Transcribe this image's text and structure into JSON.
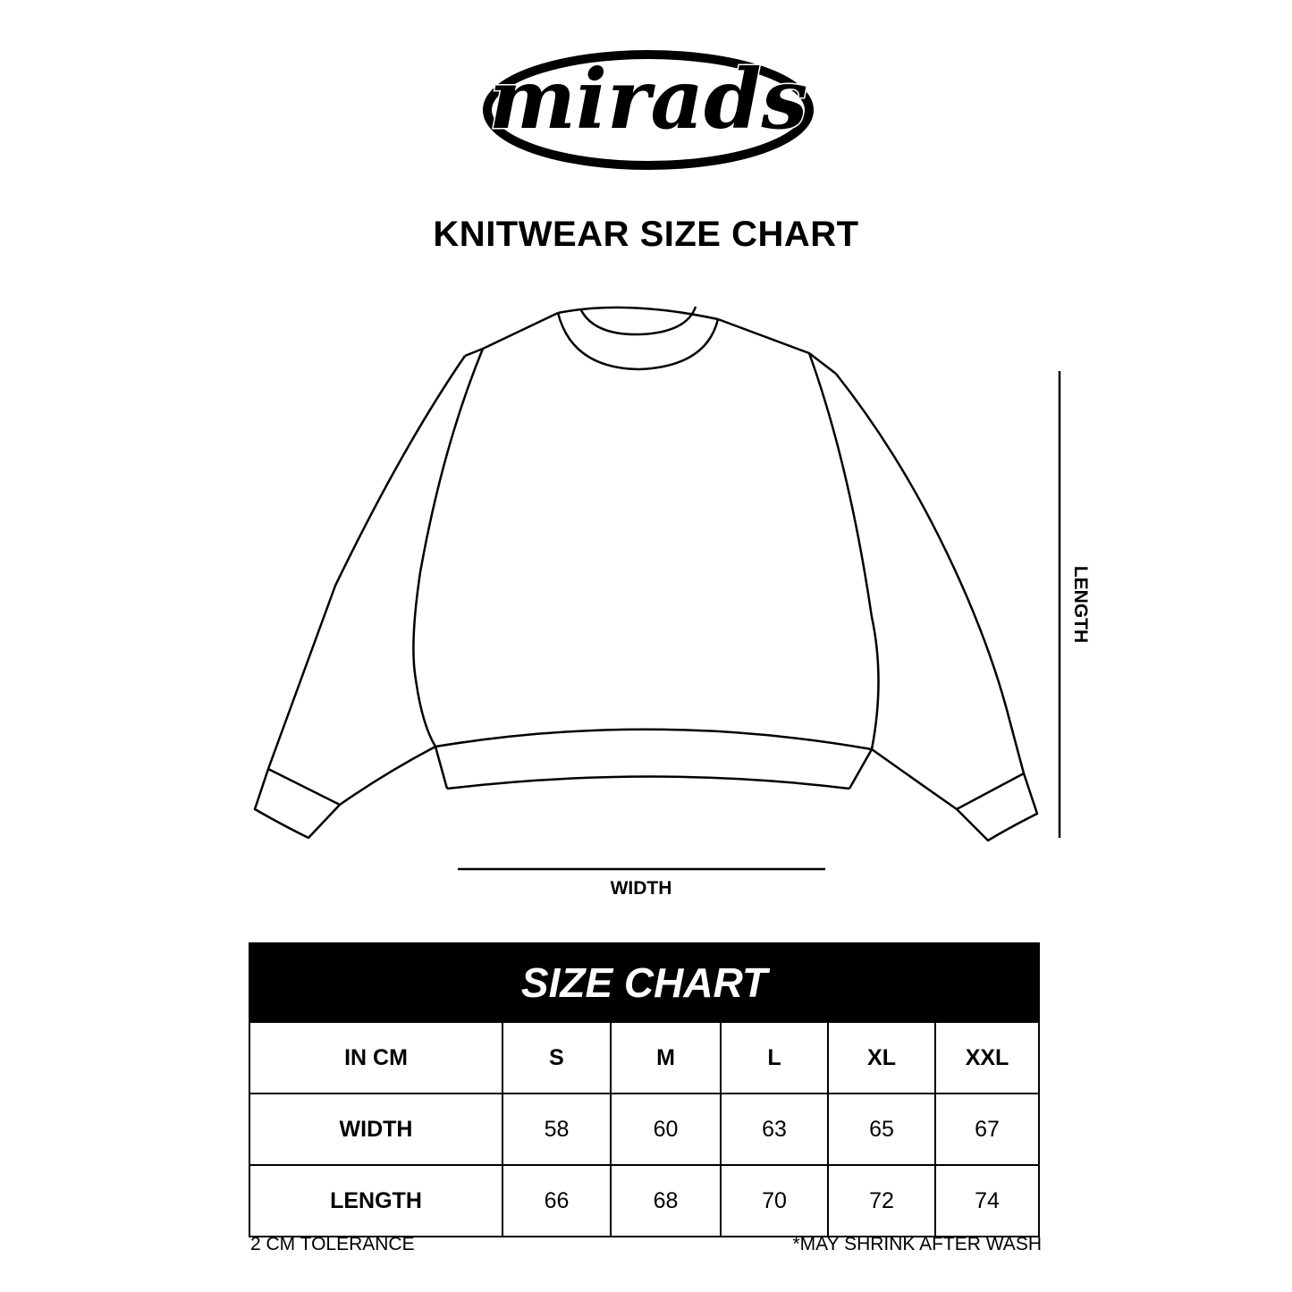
{
  "logo": {
    "text": "mirads"
  },
  "title": "KNITWEAR SIZE CHART",
  "diagram": {
    "width_label": "WIDTH",
    "length_label": "LENGTH"
  },
  "table": {
    "title": "SIZE CHART",
    "header": [
      "IN CM",
      "S",
      "M",
      "L",
      "XL",
      "XXL"
    ],
    "rows": [
      [
        "WIDTH",
        "58",
        "60",
        "63",
        "65",
        "67"
      ],
      [
        "LENGTH",
        "66",
        "68",
        "70",
        "72",
        "74"
      ]
    ]
  },
  "footer": {
    "left": "2 CM TOLERANCE",
    "right": "*MAY SHRINK AFTER WASH"
  }
}
